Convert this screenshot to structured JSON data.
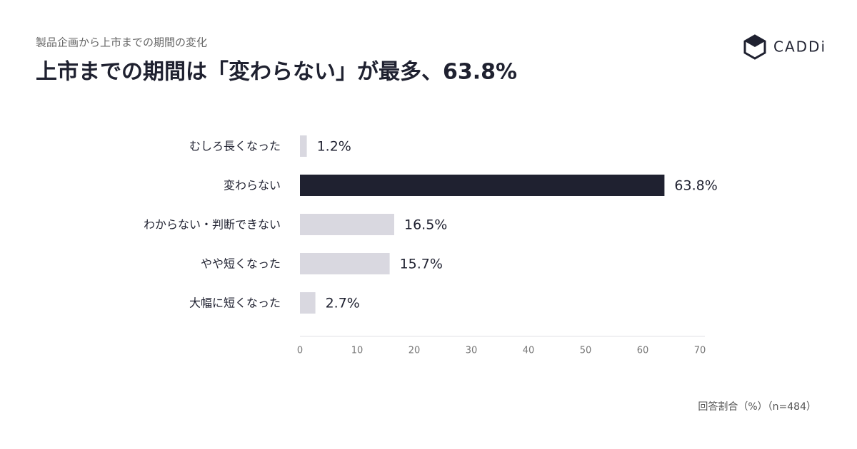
{
  "logo": "CADDi",
  "chart_data": {
    "type": "hbar",
    "subtitle": "製品企画から上市までの期間の変化",
    "title": "上市までの期間は「変わらない」が最多、63.8%",
    "categories": [
      "むしろ長くなった",
      "変わらない",
      "わからない・判断できない",
      "やや短くなった",
      "大幅に短くなった"
    ],
    "values": [
      1.2,
      63.8,
      16.5,
      15.7,
      2.7
    ],
    "value_labels": [
      "1.2%",
      "63.8%",
      "16.5%",
      "15.7%",
      "2.7%"
    ],
    "colors": [
      "#d9d8e0",
      "#1f2130",
      "#d9d8e0",
      "#d9d8e0",
      "#d9d8e0"
    ],
    "xlim": [
      0,
      70
    ],
    "xticks": [
      0,
      10,
      20,
      30,
      40,
      50,
      60,
      70
    ],
    "note": "回答割合（%）（n=484）"
  }
}
